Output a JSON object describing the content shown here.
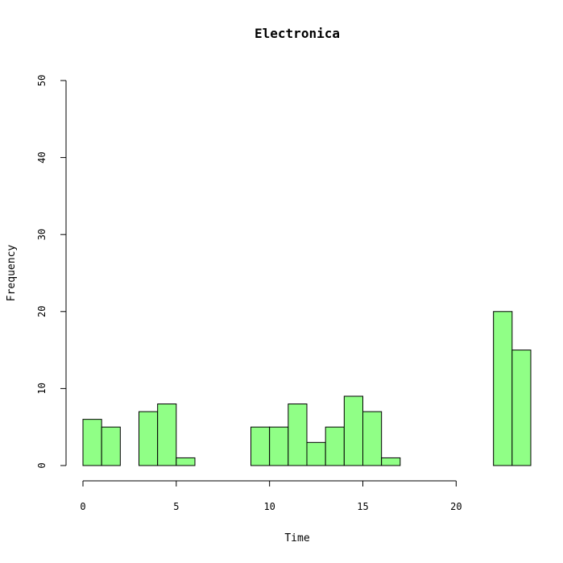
{
  "chart_data": {
    "type": "bar",
    "title": "Electronica",
    "xlabel": "Time",
    "ylabel": "Frequency",
    "xlim": [
      0,
      24
    ],
    "ylim": [
      0,
      50
    ],
    "x_ticks": [
      "0",
      "5",
      "10",
      "15",
      "20"
    ],
    "y_ticks": [
      "0",
      "10",
      "20",
      "30",
      "40",
      "50"
    ],
    "bin_width": 1,
    "bins": [
      {
        "start": 0,
        "value": 6
      },
      {
        "start": 1,
        "value": 5
      },
      {
        "start": 2,
        "value": 0
      },
      {
        "start": 3,
        "value": 7
      },
      {
        "start": 4,
        "value": 8
      },
      {
        "start": 5,
        "value": 1
      },
      {
        "start": 6,
        "value": 0
      },
      {
        "start": 7,
        "value": 0
      },
      {
        "start": 8,
        "value": 0
      },
      {
        "start": 9,
        "value": 5
      },
      {
        "start": 10,
        "value": 5
      },
      {
        "start": 11,
        "value": 8
      },
      {
        "start": 12,
        "value": 3
      },
      {
        "start": 13,
        "value": 5
      },
      {
        "start": 14,
        "value": 9
      },
      {
        "start": 15,
        "value": 7
      },
      {
        "start": 16,
        "value": 1
      },
      {
        "start": 17,
        "value": 0
      },
      {
        "start": 18,
        "value": 0
      },
      {
        "start": 19,
        "value": 0
      },
      {
        "start": 20,
        "value": 0
      },
      {
        "start": 21,
        "value": 0
      },
      {
        "start": 22,
        "value": 20
      },
      {
        "start": 23,
        "value": 15
      }
    ],
    "bar_color": "#90FF86",
    "grid": false,
    "legend": "none"
  }
}
